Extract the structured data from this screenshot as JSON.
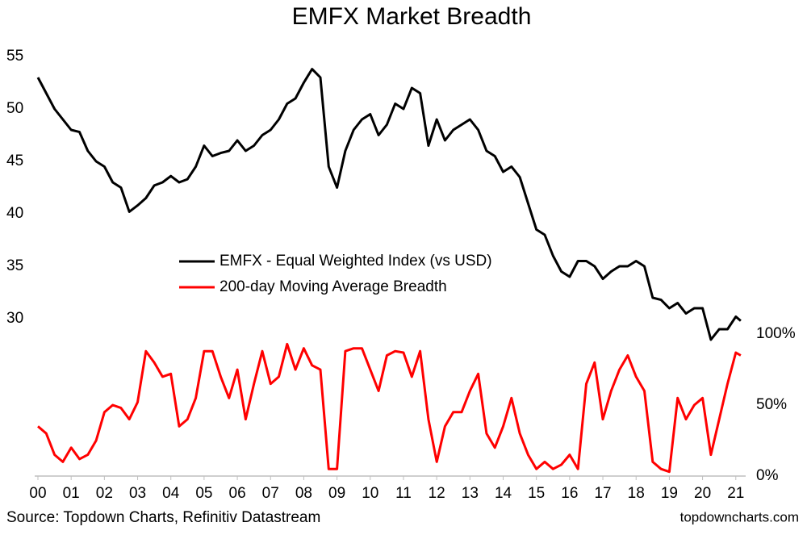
{
  "chart_data": {
    "type": "line",
    "title": "EMFX Market Breadth",
    "source": "Source: Topdown Charts, Refinitiv Datastream",
    "watermark": "topdowncharts.com",
    "legend": "center",
    "x": [
      2000,
      2000.25,
      2000.5,
      2000.75,
      2001,
      2001.25,
      2001.5,
      2001.75,
      2002,
      2002.25,
      2002.5,
      2002.75,
      2003,
      2003.25,
      2003.5,
      2003.75,
      2004,
      2004.25,
      2004.5,
      2004.75,
      2005,
      2005.25,
      2005.5,
      2005.75,
      2006,
      2006.25,
      2006.5,
      2006.75,
      2007,
      2007.25,
      2007.5,
      2007.75,
      2008,
      2008.25,
      2008.5,
      2008.75,
      2009,
      2009.25,
      2009.5,
      2009.75,
      2010,
      2010.25,
      2010.5,
      2010.75,
      2011,
      2011.25,
      2011.5,
      2011.75,
      2012,
      2012.25,
      2012.5,
      2012.75,
      2013,
      2013.25,
      2013.5,
      2013.75,
      2014,
      2014.25,
      2014.5,
      2014.75,
      2015,
      2015.25,
      2015.5,
      2015.75,
      2016,
      2016.25,
      2016.5,
      2016.75,
      2017,
      2017.25,
      2017.5,
      2017.75,
      2018,
      2018.25,
      2018.5,
      2018.75,
      2019,
      2019.25,
      2019.5,
      2019.75,
      2020,
      2020.25,
      2020.5,
      2020.75,
      2021,
      2021.15
    ],
    "xlim": [
      2000,
      2021.2
    ],
    "xticks": [
      {
        "value": 2000,
        "label": "00"
      },
      {
        "value": 2001,
        "label": "01"
      },
      {
        "value": 2002,
        "label": "02"
      },
      {
        "value": 2003,
        "label": "03"
      },
      {
        "value": 2004,
        "label": "04"
      },
      {
        "value": 2005,
        "label": "05"
      },
      {
        "value": 2006,
        "label": "06"
      },
      {
        "value": 2007,
        "label": "07"
      },
      {
        "value": 2008,
        "label": "08"
      },
      {
        "value": 2009,
        "label": "09"
      },
      {
        "value": 2010,
        "label": "10"
      },
      {
        "value": 2011,
        "label": "11"
      },
      {
        "value": 2012,
        "label": "12"
      },
      {
        "value": 2013,
        "label": "13"
      },
      {
        "value": 2014,
        "label": "14"
      },
      {
        "value": 2015,
        "label": "15"
      },
      {
        "value": 2016,
        "label": "16"
      },
      {
        "value": 2017,
        "label": "17"
      },
      {
        "value": 2018,
        "label": "18"
      },
      {
        "value": 2019,
        "label": "19"
      },
      {
        "value": 2020,
        "label": "20"
      },
      {
        "value": 2021,
        "label": "21"
      }
    ],
    "ylim": [
      15,
      56
    ],
    "yticks": [
      30,
      35,
      40,
      45,
      50,
      55
    ],
    "y2lim": [
      0,
      303
    ],
    "y2ticks": [
      {
        "value": 0,
        "label": "0%"
      },
      {
        "value": 50,
        "label": "50%"
      },
      {
        "value": 100,
        "label": "100%"
      }
    ],
    "series": [
      {
        "name": "EMFX - Equal Weighted Index (vs USD)",
        "color": "#000000",
        "values": [
          53,
          51.5,
          50,
          49,
          48,
          47.8,
          46,
          45,
          44.5,
          43,
          42.5,
          40.2,
          40.8,
          41.5,
          42.7,
          43,
          43.6,
          43,
          43.3,
          44.5,
          46.5,
          45.5,
          45.8,
          46,
          47,
          46,
          46.5,
          47.5,
          48,
          49,
          50.5,
          51,
          52.5,
          53.8,
          53,
          44.5,
          42.5,
          46,
          48,
          49,
          49.5,
          47.5,
          48.5,
          50.5,
          50,
          52,
          51.5,
          46.5,
          49,
          47,
          48,
          48.5,
          49,
          48,
          46,
          45.5,
          44,
          44.5,
          43.5,
          41,
          38.5,
          38,
          36,
          34.5,
          34,
          35.5,
          35.5,
          35,
          33.8,
          34.5,
          35,
          35,
          35.5,
          35,
          32,
          31.8,
          31,
          31.5,
          30.5,
          31,
          31,
          28,
          29,
          29,
          30.2,
          29.8
        ]
      },
      {
        "name": "200-day Moving Average Breadth",
        "color": "#ff0000",
        "axis": "y2",
        "values": [
          35,
          30,
          15,
          10,
          20,
          12,
          15,
          25,
          45,
          50,
          48,
          40,
          52,
          88,
          80,
          70,
          72,
          35,
          40,
          55,
          88,
          88,
          70,
          55,
          75,
          40,
          65,
          88,
          65,
          70,
          93,
          75,
          90,
          78,
          75,
          5,
          5,
          88,
          90,
          90,
          75,
          60,
          85,
          88,
          87,
          70,
          88,
          40,
          10,
          35,
          45,
          45,
          60,
          72,
          30,
          20,
          35,
          55,
          30,
          15,
          5,
          10,
          5,
          8,
          15,
          5,
          65,
          80,
          40,
          60,
          75,
          85,
          70,
          60,
          10,
          5,
          3,
          55,
          40,
          50,
          55,
          15,
          40,
          65,
          87,
          85
        ]
      }
    ]
  }
}
